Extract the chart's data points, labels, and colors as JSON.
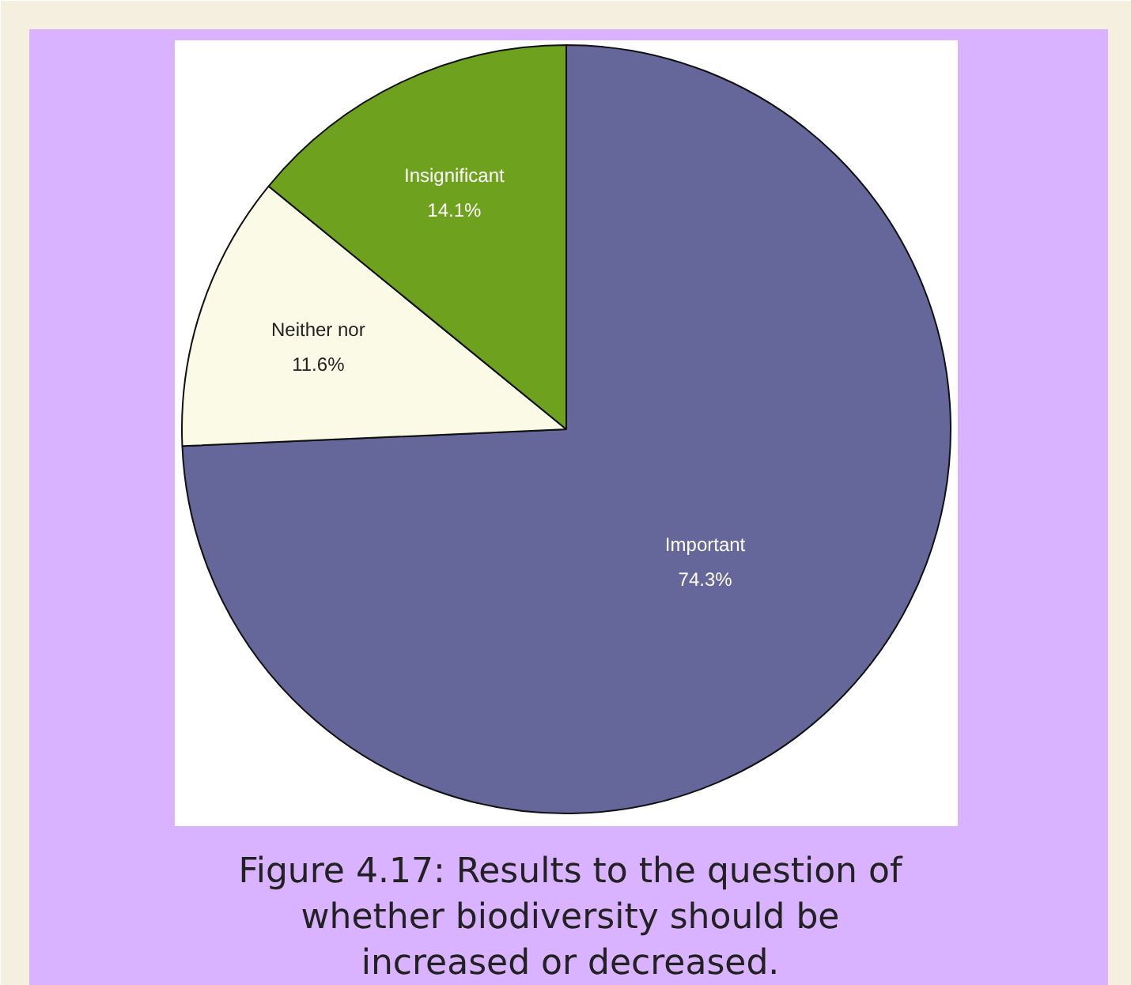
{
  "chart_data": {
    "type": "pie",
    "title": "Figure 4.17: Results to the question of\nwhether biodiversity should be\nincreased or decreased.",
    "categories": [
      "Important",
      "Neither nor",
      "Insignificant"
    ],
    "values": [
      74.3,
      11.6,
      14.1
    ],
    "value_labels": [
      "74.3%",
      "11.6%",
      "14.1%"
    ],
    "colors": [
      "#65669a",
      "#fafae6",
      "#6ea11e"
    ]
  }
}
